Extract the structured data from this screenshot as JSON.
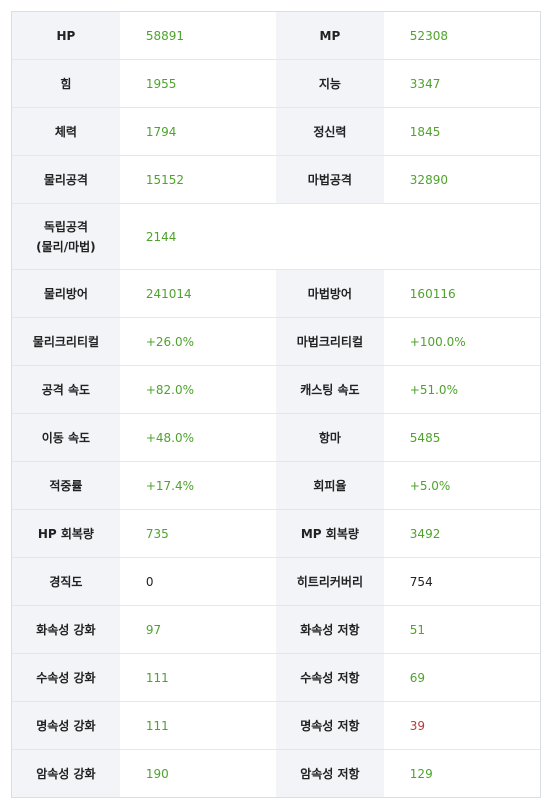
{
  "colors": {
    "label_bg": "#f2f4f8",
    "value_green": "#4fa32d",
    "value_black": "#222222",
    "value_red": "#b73b3b",
    "border": "#e4e7ec"
  },
  "rows": [
    {
      "left": {
        "label": "HP",
        "value": "58891"
      },
      "right": {
        "label": "MP",
        "value": "52308"
      }
    },
    {
      "left": {
        "label": "힘",
        "value": "1955"
      },
      "right": {
        "label": "지능",
        "value": "3347"
      }
    },
    {
      "left": {
        "label": "체력",
        "value": "1794"
      },
      "right": {
        "label": "정신력",
        "value": "1845"
      }
    },
    {
      "left": {
        "label": "물리공격",
        "value": "15152"
      },
      "right": {
        "label": "마법공격",
        "value": "32890"
      }
    },
    {
      "left": {
        "label_line1": "독립공격",
        "label_line2": "(물리/마법)",
        "value": "2144"
      }
    },
    {
      "left": {
        "label": "물리방어",
        "value": "241014"
      },
      "right": {
        "label": "마법방어",
        "value": "160116"
      }
    },
    {
      "left": {
        "label": "물리크리티컬",
        "value": "+26.0%"
      },
      "right": {
        "label": "마법크리티컬",
        "value": "+100.0%"
      }
    },
    {
      "left": {
        "label": "공격 속도",
        "value": "+82.0%"
      },
      "right": {
        "label": "캐스팅 속도",
        "value": "+51.0%"
      }
    },
    {
      "left": {
        "label": "이동 속도",
        "value": "+48.0%"
      },
      "right": {
        "label": "항마",
        "value": "5485"
      }
    },
    {
      "left": {
        "label": "적중률",
        "value": "+17.4%"
      },
      "right": {
        "label": "회피율",
        "value": "+5.0%"
      }
    },
    {
      "left": {
        "label": "HP 회복량",
        "value": "735"
      },
      "right": {
        "label": "MP 회복량",
        "value": "3492"
      }
    },
    {
      "left": {
        "label": "경직도",
        "value": "0"
      },
      "right": {
        "label": "히트리커버리",
        "value": "754"
      }
    },
    {
      "left": {
        "label": "화속성 강화",
        "value": "97"
      },
      "right": {
        "label": "화속성 저항",
        "value": "51"
      }
    },
    {
      "left": {
        "label": "수속성 강화",
        "value": "111"
      },
      "right": {
        "label": "수속성 저항",
        "value": "69"
      }
    },
    {
      "left": {
        "label": "명속성 강화",
        "value": "111"
      },
      "right": {
        "label": "명속성 저항",
        "value": "39"
      }
    },
    {
      "left": {
        "label": "암속성 강화",
        "value": "190"
      },
      "right": {
        "label": "암속성 저항",
        "value": "129"
      }
    }
  ]
}
